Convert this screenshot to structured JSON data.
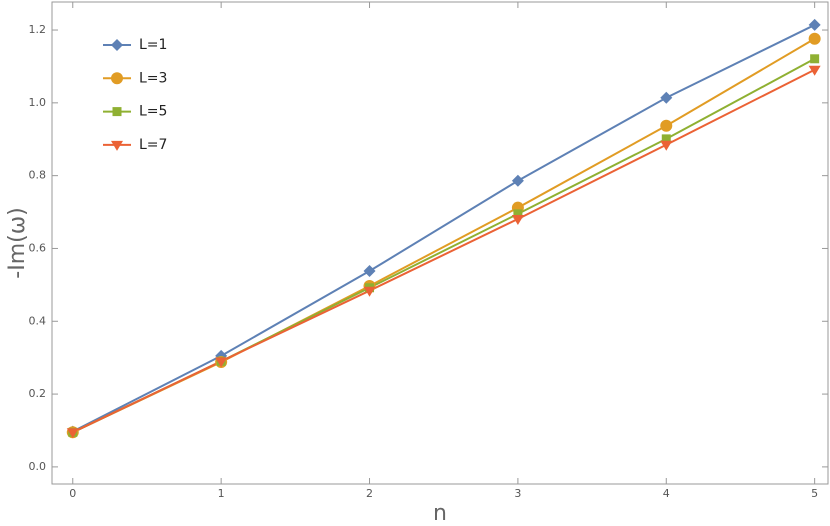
{
  "chart_data": {
    "type": "line",
    "xlabel": "n",
    "ylabel": "-Im(ω)",
    "x": [
      0,
      1,
      2,
      3,
      4,
      5
    ],
    "series": [
      {
        "name": "L=1",
        "color": "#5e81b5",
        "marker": "diamond",
        "values": [
          0.097,
          0.305,
          0.538,
          0.786,
          1.014,
          1.214
        ]
      },
      {
        "name": "L=3",
        "color": "#e19c24",
        "marker": "circle",
        "values": [
          0.095,
          0.288,
          0.497,
          0.712,
          0.937,
          1.176
        ]
      },
      {
        "name": "L=5",
        "color": "#8fb032",
        "marker": "square",
        "values": [
          0.095,
          0.29,
          0.492,
          0.695,
          0.901,
          1.121
        ]
      },
      {
        "name": "L=7",
        "color": "#eb6235",
        "marker": "triangle-down",
        "values": [
          0.095,
          0.29,
          0.484,
          0.681,
          0.885,
          1.091
        ]
      }
    ],
    "xlim": [
      -0.14,
      5.09
    ],
    "ylim": [
      -0.047,
      1.277
    ],
    "xticks": [
      0,
      1,
      2,
      3,
      4,
      5
    ],
    "yticks": [
      {
        "value": 0,
        "label": "0.0"
      },
      0.2,
      0.4,
      0.6,
      0.8,
      {
        "value": 1,
        "label": "1.0"
      },
      1.2
    ],
    "legend": "top-left"
  }
}
